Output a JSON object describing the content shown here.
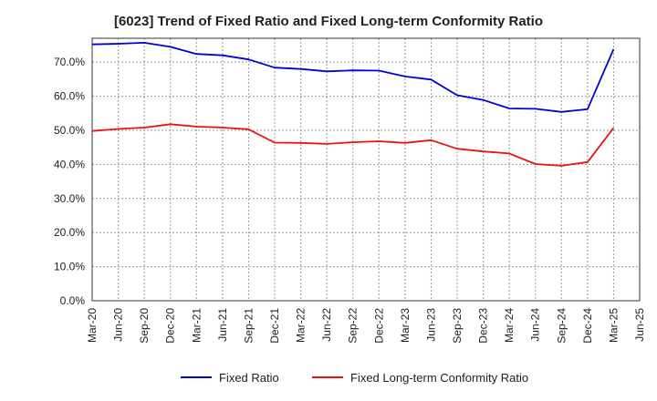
{
  "colors": {
    "fixed_ratio": "#0000dd",
    "fixed_long_term": "#ee1111",
    "grid": "#999999"
  },
  "chart_data": {
    "type": "line",
    "title": "[6023]  Trend of Fixed Ratio and Fixed Long-term Conformity Ratio",
    "xlabel": "",
    "ylabel": "",
    "x": [
      "Mar-20",
      "Jun-20",
      "Sep-20",
      "Dec-20",
      "Mar-21",
      "Jun-21",
      "Sep-21",
      "Dec-21",
      "Mar-22",
      "Jun-22",
      "Sep-22",
      "Dec-22",
      "Mar-23",
      "Jun-23",
      "Sep-23",
      "Dec-23",
      "Mar-24",
      "Jun-24",
      "Sep-24",
      "Dec-24",
      "Mar-25",
      "Jun-25"
    ],
    "ylim": [
      0,
      77
    ],
    "yticks": [
      "0.0%",
      "10.0%",
      "20.0%",
      "30.0%",
      "40.0%",
      "50.0%",
      "60.0%",
      "70.0%"
    ],
    "ytick_values": [
      0,
      10,
      20,
      30,
      40,
      50,
      60,
      70
    ],
    "grid": true,
    "legend_position": "bottom",
    "series": [
      {
        "name": "Fixed Ratio",
        "color": "#0000dd",
        "values": [
          75.2,
          75.4,
          75.7,
          74.5,
          72.4,
          72.0,
          70.8,
          68.4,
          68.0,
          67.3,
          67.6,
          67.5,
          65.8,
          64.9,
          60.3,
          58.9,
          56.4,
          56.3,
          55.4,
          56.2,
          73.8,
          null
        ]
      },
      {
        "name": "Fixed Long-term Conformity Ratio",
        "color": "#ee1111",
        "values": [
          49.8,
          50.4,
          50.8,
          51.8,
          51.1,
          50.8,
          50.3,
          46.4,
          46.3,
          46.0,
          46.5,
          46.8,
          46.3,
          47.1,
          44.6,
          43.8,
          43.2,
          40.1,
          39.6,
          40.7,
          50.7,
          null
        ]
      }
    ]
  }
}
